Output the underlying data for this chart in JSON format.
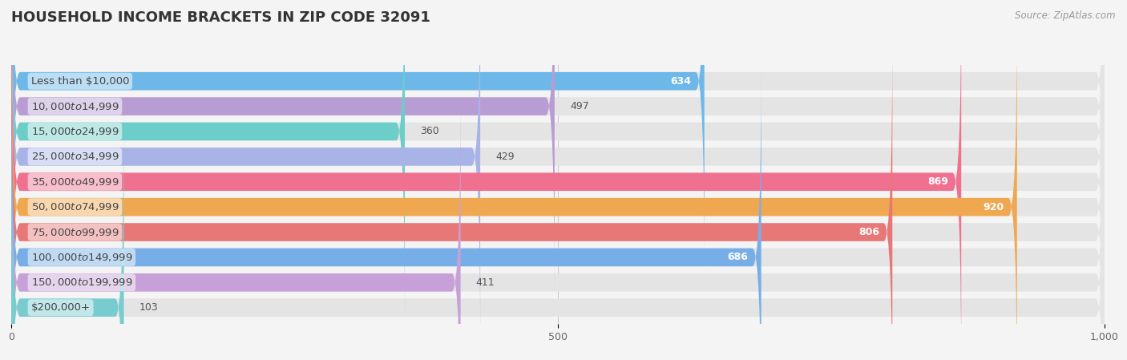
{
  "title": "HOUSEHOLD INCOME BRACKETS IN ZIP CODE 32091",
  "source": "Source: ZipAtlas.com",
  "categories": [
    "Less than $10,000",
    "$10,000 to $14,999",
    "$15,000 to $24,999",
    "$25,000 to $34,999",
    "$35,000 to $49,999",
    "$50,000 to $74,999",
    "$75,000 to $99,999",
    "$100,000 to $149,999",
    "$150,000 to $199,999",
    "$200,000+"
  ],
  "values": [
    634,
    497,
    360,
    429,
    869,
    920,
    806,
    686,
    411,
    103
  ],
  "bar_colors": [
    "#6db8e8",
    "#b89dd4",
    "#6dcdc8",
    "#a8b4e8",
    "#f07090",
    "#f0a850",
    "#e87878",
    "#78aee8",
    "#c8a0d8",
    "#78ccd0"
  ],
  "background_color": "#f4f4f4",
  "bar_bg_color": "#e4e4e4",
  "xlim": [
    0,
    1000
  ],
  "xticks": [
    0,
    500,
    1000
  ],
  "title_fontsize": 13,
  "label_fontsize": 9.5,
  "value_fontsize": 9,
  "bar_height": 0.72,
  "figsize": [
    14.06,
    4.49
  ],
  "dpi": 100,
  "label_threshold": 300,
  "value_inside_threshold": 500
}
